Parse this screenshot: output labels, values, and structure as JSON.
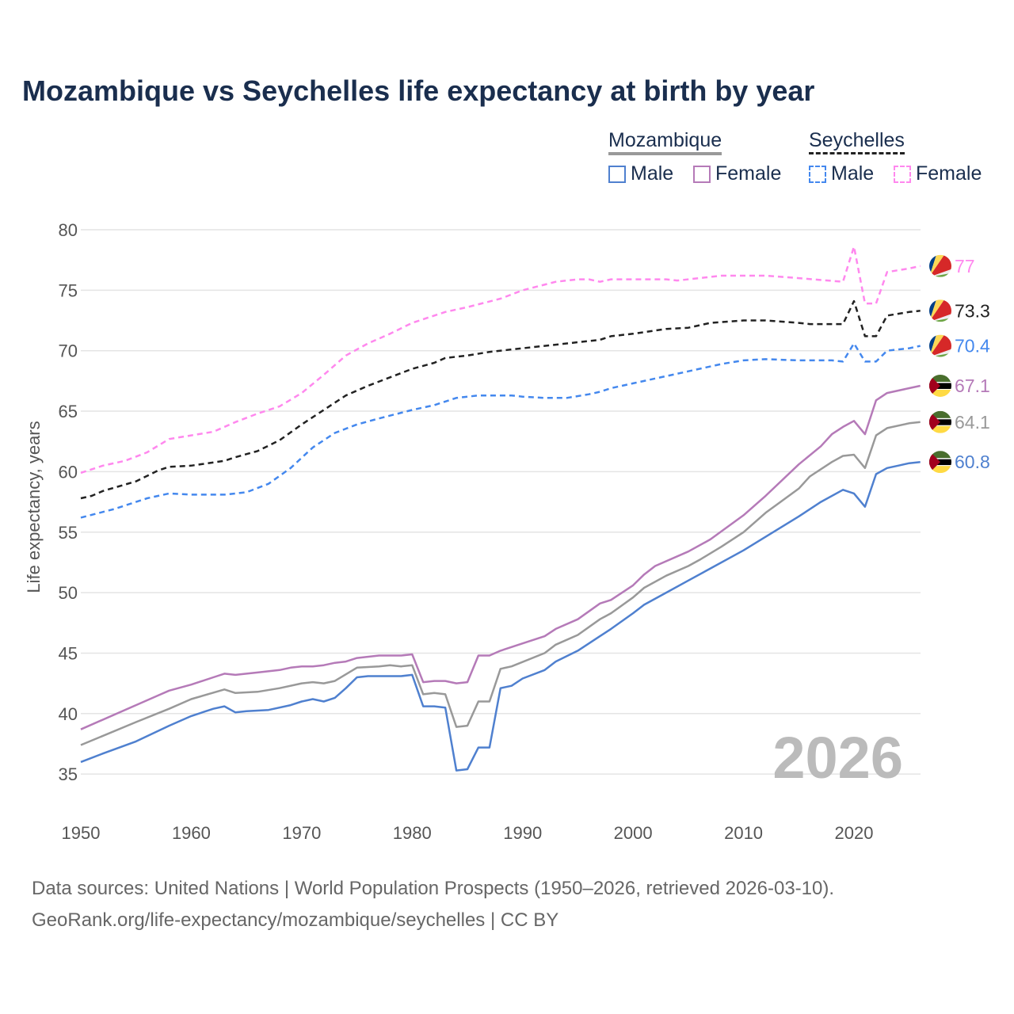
{
  "chart_data": {
    "type": "line",
    "title": "Mozambique vs Seychelles life expectancy at birth by year",
    "xlabel": "",
    "ylabel": "Life expectancy, years",
    "xlim": [
      1950,
      2026
    ],
    "ylim": [
      32,
      80
    ],
    "xticks": [
      1950,
      1960,
      1970,
      1980,
      1990,
      2000,
      2010,
      2020
    ],
    "yticks": [
      35,
      40,
      45,
      50,
      55,
      60,
      65,
      70,
      75,
      80
    ],
    "year_watermark": "2026",
    "legend": {
      "groups": [
        {
          "name": "Mozambique",
          "items": [
            "Male",
            "Female"
          ]
        },
        {
          "name": "Seychelles",
          "items": [
            "Male",
            "Female"
          ]
        }
      ]
    },
    "series": [
      {
        "name": "Seychelles Female",
        "country": "Seychelles",
        "color": "#ff88ee",
        "dashed": true,
        "end_label": "77",
        "x": [
          1950,
          1952,
          1954,
          1956,
          1958,
          1960,
          1962,
          1964,
          1966,
          1968,
          1970,
          1972,
          1974,
          1976,
          1978,
          1980,
          1983,
          1985,
          1988,
          1990,
          1993,
          1995,
          1996,
          1997,
          1998,
          2003,
          2004,
          2006,
          2008,
          2012,
          2015,
          2019,
          2020,
          2021,
          2022,
          2023,
          2025,
          2026
        ],
        "y": [
          59.9,
          60.5,
          60.9,
          61.6,
          62.7,
          63.0,
          63.3,
          64.1,
          64.8,
          65.4,
          66.5,
          68.0,
          69.6,
          70.6,
          71.4,
          72.3,
          73.2,
          73.6,
          74.3,
          75.0,
          75.7,
          75.9,
          75.9,
          75.7,
          75.9,
          75.9,
          75.8,
          76.0,
          76.2,
          76.2,
          76.0,
          75.7,
          78.6,
          73.9,
          73.9,
          76.5,
          76.8,
          77.0
        ]
      },
      {
        "name": "Seychelles Total",
        "country": "Seychelles",
        "color": "#222222",
        "dashed": true,
        "end_label": "73.3",
        "x": [
          1950,
          1951,
          1952,
          1955,
          1957,
          1958,
          1960,
          1963,
          1964,
          1966,
          1968,
          1970,
          1972,
          1974,
          1976,
          1978,
          1980,
          1982,
          1983,
          1985,
          1987,
          1990,
          1993,
          1995,
          1997,
          1998,
          2000,
          2003,
          2005,
          2007,
          2010,
          2012,
          2015,
          2016,
          2019,
          2020,
          2021,
          2022,
          2023,
          2025,
          2026
        ],
        "y": [
          57.8,
          58.0,
          58.4,
          59.2,
          60.1,
          60.4,
          60.5,
          60.9,
          61.2,
          61.7,
          62.6,
          63.9,
          65.1,
          66.3,
          67.1,
          67.8,
          68.5,
          69.0,
          69.4,
          69.6,
          69.9,
          70.2,
          70.5,
          70.7,
          70.9,
          71.2,
          71.4,
          71.8,
          71.9,
          72.3,
          72.5,
          72.5,
          72.3,
          72.2,
          72.2,
          74.1,
          71.2,
          71.2,
          72.9,
          73.2,
          73.3
        ]
      },
      {
        "name": "Seychelles Male",
        "country": "Seychelles",
        "color": "#4488ee",
        "dashed": true,
        "end_label": "70.4",
        "x": [
          1950,
          1953,
          1956,
          1958,
          1960,
          1963,
          1965,
          1967,
          1969,
          1971,
          1973,
          1975,
          1977,
          1980,
          1982,
          1984,
          1986,
          1989,
          1990,
          1992,
          1994,
          1996,
          1997,
          1998,
          2000,
          2003,
          2005,
          2008,
          2010,
          2012,
          2015,
          2018,
          2019,
          2020,
          2021,
          2022,
          2023,
          2025,
          2026
        ],
        "y": [
          56.2,
          56.9,
          57.8,
          58.2,
          58.1,
          58.1,
          58.3,
          59.0,
          60.3,
          62.0,
          63.2,
          63.9,
          64.4,
          65.1,
          65.5,
          66.1,
          66.3,
          66.3,
          66.2,
          66.1,
          66.1,
          66.4,
          66.6,
          66.9,
          67.3,
          67.9,
          68.3,
          68.9,
          69.2,
          69.3,
          69.2,
          69.2,
          69.1,
          70.6,
          69.1,
          69.1,
          70.0,
          70.2,
          70.4
        ]
      },
      {
        "name": "Mozambique Female",
        "country": "Mozambique",
        "color": "#b57ab8",
        "dashed": false,
        "end_label": "67.1",
        "x": [
          1950,
          1955,
          1957,
          1958,
          1960,
          1962,
          1963,
          1964,
          1966,
          1968,
          1969,
          1970,
          1971,
          1972,
          1973,
          1974,
          1975,
          1977,
          1979,
          1980,
          1981,
          1982,
          1983,
          1984,
          1985,
          1986,
          1987,
          1988,
          1990,
          1992,
          1993,
          1995,
          1997,
          1998,
          2000,
          2001,
          2002,
          2005,
          2007,
          2010,
          2012,
          2015,
          2017,
          2018,
          2019,
          2020,
          2021,
          2022,
          2023,
          2025,
          2026
        ],
        "y": [
          38.7,
          40.7,
          41.5,
          41.9,
          42.4,
          43.0,
          43.3,
          43.2,
          43.4,
          43.6,
          43.8,
          43.9,
          43.9,
          44.0,
          44.2,
          44.3,
          44.6,
          44.8,
          44.8,
          44.9,
          42.6,
          42.7,
          42.7,
          42.5,
          42.6,
          44.8,
          44.8,
          45.2,
          45.8,
          46.4,
          47.0,
          47.8,
          49.1,
          49.4,
          50.6,
          51.5,
          52.2,
          53.4,
          54.4,
          56.4,
          58.0,
          60.6,
          62.1,
          63.1,
          63.7,
          64.2,
          63.1,
          65.9,
          66.5,
          66.9,
          67.1
        ]
      },
      {
        "name": "Mozambique Total",
        "country": "Mozambique",
        "color": "#999999",
        "dashed": false,
        "end_label": "64.1",
        "x": [
          1950,
          1955,
          1958,
          1960,
          1963,
          1964,
          1966,
          1968,
          1970,
          1971,
          1972,
          1973,
          1975,
          1977,
          1978,
          1979,
          1980,
          1981,
          1982,
          1983,
          1984,
          1985,
          1986,
          1987,
          1988,
          1989,
          1992,
          1993,
          1995,
          1997,
          1998,
          2000,
          2001,
          2003,
          2005,
          2006,
          2008,
          2010,
          2012,
          2015,
          2016,
          2018,
          2019,
          2020,
          2021,
          2022,
          2023,
          2025,
          2026
        ],
        "y": [
          37.4,
          39.3,
          40.4,
          41.2,
          42.0,
          41.7,
          41.8,
          42.1,
          42.5,
          42.6,
          42.5,
          42.7,
          43.8,
          43.9,
          44.0,
          43.9,
          44.0,
          41.6,
          41.7,
          41.6,
          38.9,
          39.0,
          41.0,
          41.0,
          43.7,
          43.9,
          45.0,
          45.7,
          46.5,
          47.8,
          48.3,
          49.6,
          50.4,
          51.4,
          52.2,
          52.7,
          53.8,
          55.0,
          56.6,
          58.6,
          59.6,
          60.8,
          61.3,
          61.4,
          60.3,
          63.0,
          63.6,
          64.0,
          64.1
        ]
      },
      {
        "name": "Mozambique Male",
        "country": "Mozambique",
        "color": "#4f80cf",
        "dashed": false,
        "end_label": "60.8",
        "x": [
          1950,
          1952,
          1955,
          1958,
          1960,
          1962,
          1963,
          1964,
          1965,
          1967,
          1969,
          1970,
          1971,
          1972,
          1973,
          1974,
          1975,
          1976,
          1979,
          1980,
          1981,
          1982,
          1983,
          1984,
          1985,
          1986,
          1987,
          1988,
          1989,
          1990,
          1992,
          1993,
          1995,
          1997,
          1998,
          2000,
          2001,
          2003,
          2005,
          2007,
          2010,
          2015,
          2017,
          2019,
          2020,
          2021,
          2022,
          2023,
          2024,
          2025,
          2026
        ],
        "y": [
          36.0,
          36.7,
          37.7,
          39.0,
          39.8,
          40.4,
          40.6,
          40.1,
          40.2,
          40.3,
          40.7,
          41.0,
          41.2,
          41.0,
          41.3,
          42.1,
          43.0,
          43.1,
          43.1,
          43.2,
          40.6,
          40.6,
          40.5,
          35.3,
          35.4,
          37.2,
          37.2,
          42.1,
          42.3,
          42.9,
          43.6,
          44.3,
          45.2,
          46.4,
          47.0,
          48.3,
          49.0,
          50.0,
          51.0,
          52.0,
          53.5,
          56.3,
          57.5,
          58.5,
          58.2,
          57.1,
          59.8,
          60.3,
          60.5,
          60.7,
          60.8
        ]
      }
    ]
  },
  "legend_labels": {
    "moz": "Mozambique",
    "sey": "Seychelles",
    "male": "Male",
    "female": "Female"
  },
  "sources": {
    "line1": "Data sources: United Nations | World Population Prospects (1950–2026, retrieved 2026-03-10).",
    "line2": "GeoRank.org/life-expectancy/mozambique/seychelles | CC BY"
  }
}
